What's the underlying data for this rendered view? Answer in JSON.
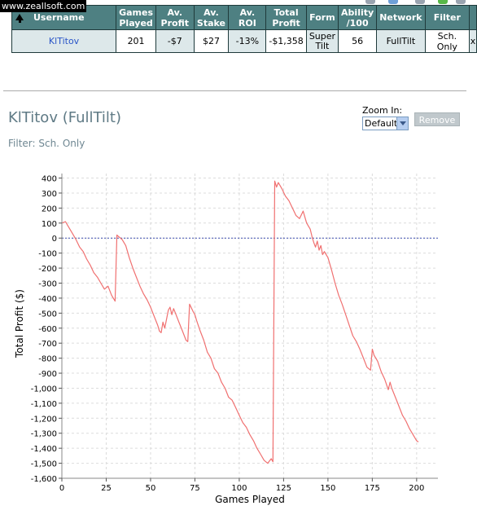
{
  "watermark": "www.zeallsoft.com",
  "table": {
    "headers": {
      "username": "Username",
      "games_played_1": "Games",
      "games_played_2": "Played",
      "av_profit_1": "Av.",
      "av_profit_2": "Profit",
      "av_stake_1": "Av.",
      "av_stake_2": "Stake",
      "av_roi": "Av. ROI",
      "total_profit_1": "Total",
      "total_profit_2": "Profit",
      "form": "Form",
      "ability_1": "Ability",
      "ability_2": "/100",
      "network": "Network",
      "filter": "Filter"
    },
    "row": {
      "username": "KlTitov",
      "games_played": "201",
      "av_profit": "-$7",
      "av_stake": "$27",
      "av_roi": "-13%",
      "total_profit": "-$1,358",
      "form_1": "Super",
      "form_2": "Tilt",
      "ability": "56",
      "network": "FullTilt",
      "filter": "Sch. Only",
      "remove": "x"
    }
  },
  "player": {
    "title": "KlTitov (FullTilt)",
    "filter": "Filter: Sch. Only"
  },
  "zoom": {
    "label": "Zoom In:",
    "selected": "Default"
  },
  "remove_button": "Remove",
  "colors": {
    "header": "#4e8082",
    "line": "#f07070",
    "zero_line": "#3d4fb0",
    "negative": "#e01010",
    "link": "#2a55c8"
  },
  "chart_data": {
    "type": "line",
    "xlabel": "Games Played",
    "ylabel": "Total Profit ($)",
    "xlim": [
      0,
      212
    ],
    "ylim": [
      -1600,
      430
    ],
    "xticks": [
      0,
      25,
      50,
      75,
      100,
      125,
      150,
      175,
      200
    ],
    "xtick_labels": [
      "0",
      "25",
      "50",
      "75",
      "100",
      "125",
      "150",
      "175",
      "200"
    ],
    "yticks": [
      400,
      300,
      200,
      100,
      0,
      -100,
      -200,
      -300,
      -400,
      -500,
      -600,
      -700,
      -800,
      -900,
      -1000,
      -1100,
      -1200,
      -1300,
      -1400,
      -1500,
      -1600
    ],
    "ytick_labels": [
      "400",
      "300",
      "200",
      "100",
      "0",
      "-100",
      "-200",
      "-300",
      "-400",
      "-500",
      "-600",
      "-700",
      "-800",
      "-900",
      "-1,000",
      "-1,100",
      "-1,200",
      "-1,300",
      "-1,400",
      "-1,500",
      "-1,600"
    ],
    "grid": true,
    "series": [
      {
        "x": [
          0,
          2,
          4,
          6,
          8,
          10,
          12,
          14,
          16,
          18,
          20,
          22,
          24,
          26,
          28,
          29,
          30,
          31,
          32,
          33,
          34,
          36,
          38,
          40,
          42,
          44,
          46,
          48,
          50,
          52,
          54,
          55,
          56,
          57,
          58,
          60,
          61,
          62,
          63,
          64,
          66,
          68,
          70,
          71,
          72,
          74,
          75,
          76,
          78,
          80,
          82,
          84,
          86,
          88,
          90,
          92,
          94,
          96,
          98,
          100,
          102,
          104,
          106,
          108,
          110,
          112,
          114,
          116,
          118,
          119,
          120,
          121,
          122,
          123,
          124,
          126,
          128,
          130,
          132,
          134,
          136,
          138,
          140,
          141,
          142,
          143,
          144,
          145,
          146,
          147,
          148,
          150,
          152,
          154,
          156,
          158,
          160,
          162,
          164,
          166,
          168,
          170,
          172,
          174,
          175,
          176,
          178,
          180,
          182,
          184,
          185,
          186,
          188,
          190,
          192,
          194,
          196,
          198,
          200,
          201
        ],
        "y": [
          100,
          110,
          70,
          30,
          -10,
          -60,
          -90,
          -140,
          -180,
          -230,
          -260,
          -300,
          -340,
          -320,
          -380,
          -400,
          -420,
          20,
          10,
          0,
          -10,
          -50,
          -130,
          -200,
          -260,
          -320,
          -370,
          -410,
          -460,
          -520,
          -580,
          -620,
          -630,
          -560,
          -600,
          -480,
          -460,
          -510,
          -470,
          -500,
          -560,
          -620,
          -680,
          -690,
          -440,
          -490,
          -510,
          -550,
          -620,
          -680,
          -760,
          -800,
          -870,
          -900,
          -960,
          -1000,
          -1060,
          -1080,
          -1130,
          -1180,
          -1230,
          -1260,
          -1310,
          -1350,
          -1400,
          -1440,
          -1480,
          -1500,
          -1470,
          -1490,
          380,
          340,
          370,
          350,
          330,
          280,
          250,
          200,
          150,
          130,
          180,
          100,
          60,
          10,
          -30,
          -60,
          -20,
          -80,
          -50,
          -110,
          -90,
          -130,
          -210,
          -300,
          -380,
          -440,
          -510,
          -580,
          -650,
          -690,
          -740,
          -800,
          -860,
          -880,
          -740,
          -780,
          -820,
          -890,
          -940,
          -1010,
          -960,
          -1000,
          -1060,
          -1120,
          -1180,
          -1220,
          -1270,
          -1310,
          -1350,
          -1358
        ]
      }
    ]
  }
}
